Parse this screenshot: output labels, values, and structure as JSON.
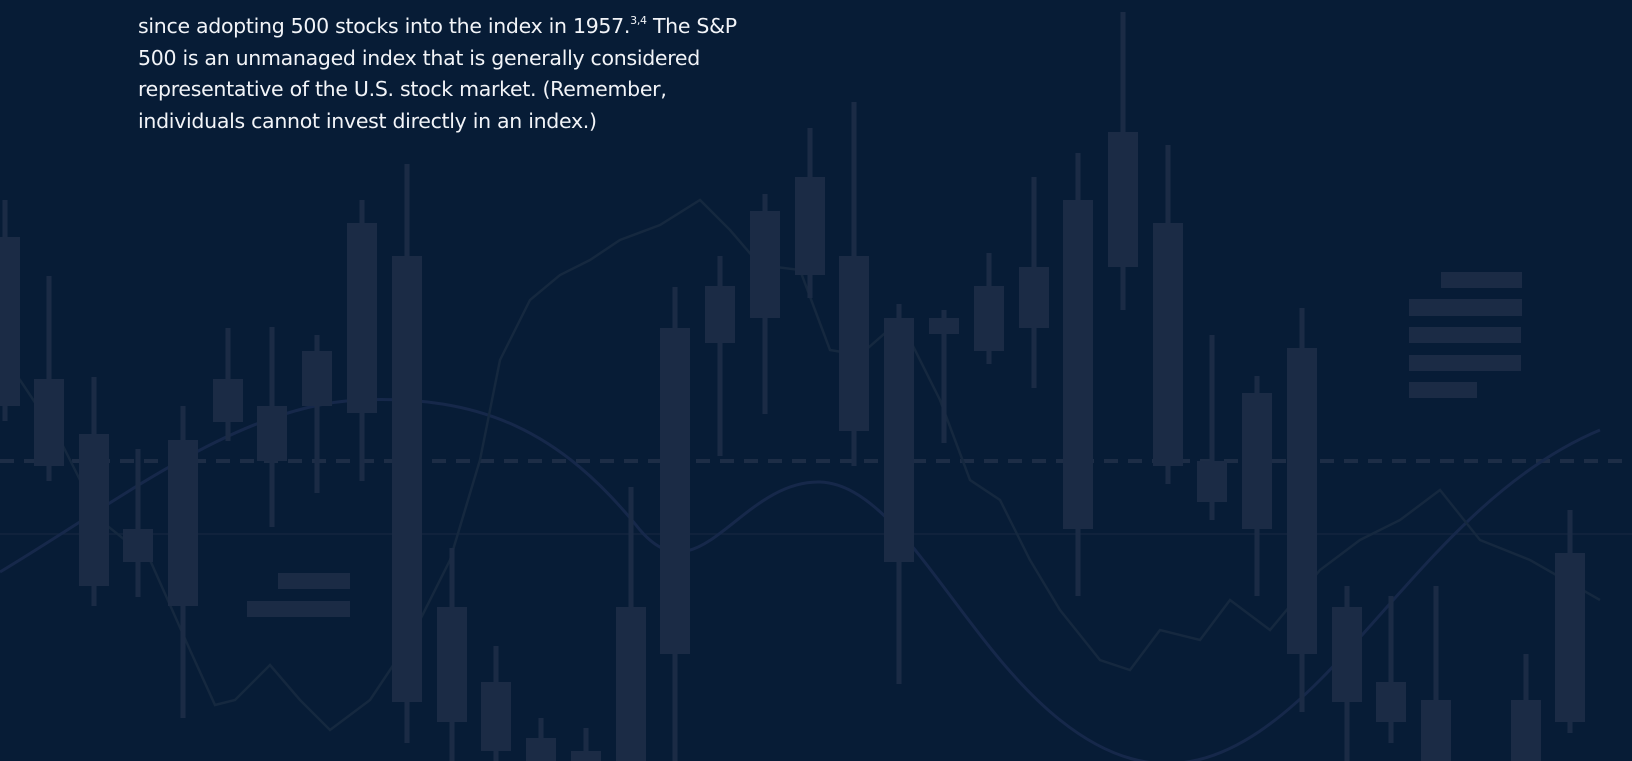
{
  "paragraph": {
    "text_before": "since adopting 500 stocks into the index in 1957.",
    "superscript": "3,4",
    "text_after": " The S&P 500 is an unmanaged index that is generally considered representative of the U.S. stock market. (Remember, individuals cannot invest directly in an index.)"
  }
}
